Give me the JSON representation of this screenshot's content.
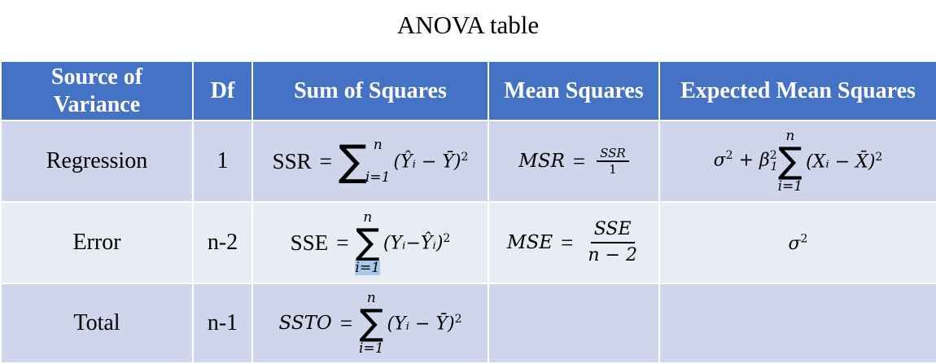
{
  "title": "ANOVA table",
  "headers": [
    "Source of\nVariance",
    "Df",
    "Sum of Squares",
    "Mean Squares",
    "Expected Mean Squares"
  ],
  "header_lines": {
    "source_1": "Source of",
    "source_2": "Variance"
  },
  "rows": [
    {
      "source": "Regression",
      "df": "1",
      "ss": {
        "lhs": "SSR",
        "eq": "=",
        "sum_upper": "n",
        "sum_lower": "i=1",
        "term": "(Ŷᵢ − Ȳ)",
        "power": "2"
      },
      "ms": {
        "lhs": "MSR",
        "eq": "=",
        "num": "SSR",
        "den": "1"
      },
      "ems": {
        "prefix": "σ",
        "prefix_sup": "2",
        "plus": " + ",
        "beta": "β",
        "beta_sub": "1",
        "beta_sup": "2",
        "sum_upper": "n",
        "sum_lower": "i=1",
        "term": "(Xᵢ − X̄)",
        "power": "2"
      }
    },
    {
      "source": "Error",
      "df": "n-2",
      "ss": {
        "lhs": "SSE",
        "eq": "=",
        "sum_upper": "n",
        "sum_lower": "i=1",
        "term": "(Yᵢ−Ŷᵢ)",
        "power": "2"
      },
      "ms": {
        "lhs": "MSE",
        "eq": "=",
        "num": "SSE",
        "den": "n − 2"
      },
      "ems": {
        "prefix": "σ",
        "prefix_sup": "2"
      }
    },
    {
      "source": "Total",
      "df": "n-1",
      "ss": {
        "lhs": "SSTO",
        "eq": "=",
        "sum_upper": "n",
        "sum_lower": "i=1",
        "term": "(Yᵢ − Ȳ)",
        "power": "2"
      },
      "ms": {},
      "ems": {}
    }
  ],
  "colors": {
    "header_bg": "#4472c4",
    "row_dark": "#cfd5ea",
    "row_light": "#e9ebf5",
    "highlight": "#a9c7e8"
  }
}
